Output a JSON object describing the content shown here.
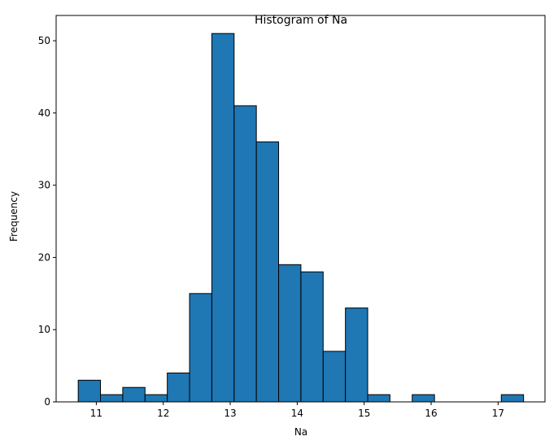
{
  "chart_data": {
    "type": "bar",
    "title": "Histogram of Na",
    "xlabel": "Na",
    "ylabel": "Frequency",
    "bin_edges": [
      10.73,
      11.0625,
      11.395,
      11.7275,
      12.06,
      12.3925,
      12.725,
      13.0575,
      13.39,
      13.7225,
      14.055,
      14.3875,
      14.72,
      15.0525,
      15.385,
      15.7175,
      16.05,
      16.3825,
      16.715,
      17.0475,
      17.38
    ],
    "values": [
      3,
      1,
      2,
      1,
      4,
      15,
      51,
      41,
      36,
      19,
      18,
      7,
      13,
      1,
      0,
      1,
      0,
      0,
      0,
      1
    ],
    "xlim": [
      10.4,
      17.7
    ],
    "ylim": [
      0,
      53.5
    ],
    "xticks": [
      11,
      12,
      13,
      14,
      15,
      16,
      17
    ],
    "xtick_labels": [
      "11",
      "12",
      "13",
      "14",
      "15",
      "16",
      "17"
    ],
    "yticks": [
      0,
      10,
      20,
      30,
      40,
      50
    ],
    "ytick_labels": [
      "0",
      "10",
      "20",
      "30",
      "40",
      "50"
    ],
    "bar_color": "#1f77b4",
    "edge_color": "#000000",
    "grid": false,
    "legend": "none"
  }
}
